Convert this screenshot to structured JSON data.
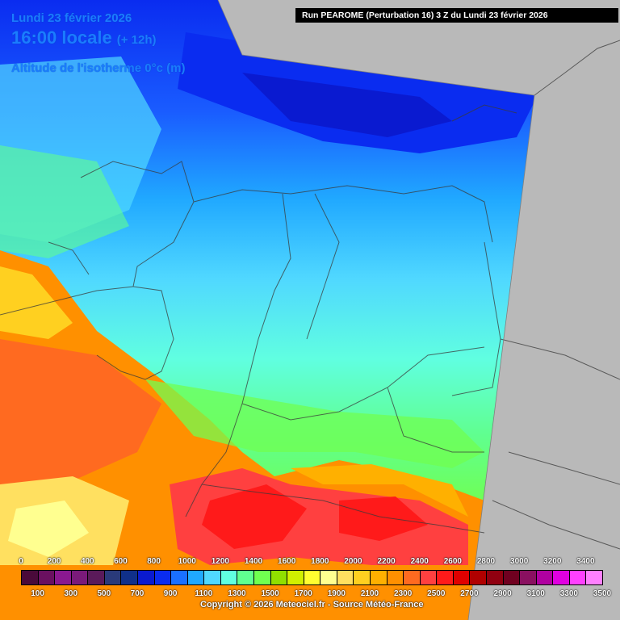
{
  "header": {
    "date": "Lundi 23 février 2026",
    "time": "16:00 locale",
    "lead": "(+ 12h)",
    "parameter": "Altitude de l'isotherme 0°c (m)",
    "run": "Run PEAROME (Perturbation 16) 3 Z du Lundi 23 février 2026"
  },
  "legend": {
    "top_labels": [
      "0",
      "200",
      "400",
      "600",
      "800",
      "1000",
      "1200",
      "1400",
      "1600",
      "1800",
      "2000",
      "2200",
      "2400",
      "2600",
      "2800",
      "3000",
      "3200",
      "3400"
    ],
    "bottom_labels": [
      "100",
      "300",
      "500",
      "700",
      "900",
      "1100",
      "1300",
      "1500",
      "1700",
      "1900",
      "2100",
      "2300",
      "2500",
      "2700",
      "2900",
      "3100",
      "3300",
      "3500"
    ],
    "colors": [
      "#4a0a3a",
      "#6a1060",
      "#8a1890",
      "#7a1a7a",
      "#5a1a5a",
      "#2a3a7a",
      "#10308a",
      "#0a1ad0",
      "#0a2cf0",
      "#1a70ff",
      "#20a8ff",
      "#50d8ff",
      "#60ffe0",
      "#60ff90",
      "#70ff50",
      "#90e000",
      "#d0f000",
      "#ffff30",
      "#ffff90",
      "#ffe060",
      "#ffd020",
      "#ffb000",
      "#ff9000",
      "#ff6a20",
      "#ff4040",
      "#ff1a1a",
      "#e00000",
      "#b00000",
      "#900010",
      "#700020",
      "#8a1060",
      "#b000a0",
      "#e000e0",
      "#ff40ff",
      "#ff80ff"
    ]
  },
  "copyright": "Copyright © 2026 Meteociel.fr - Source Météo-France"
}
